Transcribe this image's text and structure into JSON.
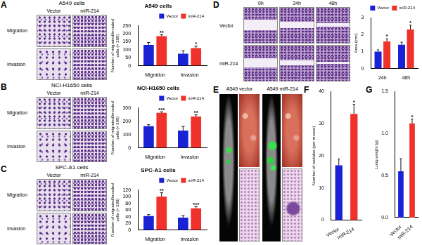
{
  "chart_data": [
    {
      "panel": "A",
      "type": "bar",
      "title": "A549 cells",
      "y_label": "Number of migrated/invaded cells (× 200)",
      "categories": [
        "Migration",
        "Invasion"
      ],
      "series": [
        {
          "name": "Vector",
          "color": "#1a22d6",
          "values": [
            130,
            75
          ],
          "errors": [
            15,
            18
          ]
        },
        {
          "name": "miR-214",
          "color": "#f0322d",
          "values": [
            185,
            110
          ],
          "errors": [
            8,
            12
          ],
          "significance": [
            "**",
            "*"
          ]
        }
      ],
      "ylim": [
        0,
        250
      ],
      "yticks": [
        0,
        50,
        100,
        150,
        200,
        250
      ],
      "grid": false,
      "legend": "top right"
    },
    {
      "panel": "B",
      "type": "bar",
      "title": "NCI-H1650 cells",
      "y_label": "Number of migrated/invaded cells (× 200)",
      "categories": [
        "Migration",
        "Invasion"
      ],
      "series": [
        {
          "name": "Vector",
          "color": "#1a22d6",
          "values": [
            163,
            130
          ],
          "errors": [
            10,
            30
          ]
        },
        {
          "name": "miR-214",
          "color": "#f0322d",
          "values": [
            262,
            235
          ],
          "errors": [
            8,
            12
          ],
          "significance": [
            "***",
            "**"
          ]
        }
      ],
      "ylim": [
        0,
        300
      ],
      "yticks": [
        0,
        100,
        200,
        300
      ],
      "grid": false,
      "legend": "top right"
    },
    {
      "panel": "C",
      "type": "bar",
      "title": "SPC-A1 cells",
      "y_label": "Number of migrated/invaded cells (× 200)",
      "categories": [
        "Migration",
        "Invasion"
      ],
      "series": [
        {
          "name": "Vector",
          "color": "#1a22d6",
          "values": [
            42,
            37
          ],
          "errors": [
            4,
            6
          ]
        },
        {
          "name": "miR-214",
          "color": "#f0322d",
          "values": [
            100,
            65
          ],
          "errors": [
            12,
            5
          ],
          "significance": [
            "**",
            "***"
          ]
        }
      ],
      "ylim": [
        0,
        120
      ],
      "yticks": [
        0,
        20,
        40,
        60,
        80,
        100,
        120
      ],
      "grid": false,
      "legend": "top right"
    },
    {
      "panel": "D",
      "type": "bar",
      "y_label": "Area (cm²)",
      "categories": [
        "24h",
        "48h"
      ],
      "series": [
        {
          "name": "Vector",
          "color": "#1a22d6",
          "values": [
            1.0,
            1.4
          ],
          "errors": [
            0.1,
            0.15
          ]
        },
        {
          "name": "miR-214",
          "color": "#f0322d",
          "values": [
            1.6,
            2.3
          ],
          "errors": [
            0.15,
            0.25
          ],
          "significance": [
            "*",
            "*"
          ]
        }
      ],
      "ylim": [
        0,
        3
      ],
      "yticks": [
        0,
        1,
        2,
        3
      ],
      "grid": false,
      "legend": "top right"
    },
    {
      "panel": "F",
      "type": "bar",
      "y_label": "Number of nodules (per mouse)",
      "categories": [
        "Vector",
        "miR-214"
      ],
      "values": [
        17,
        33
      ],
      "errors": [
        2,
        3
      ],
      "significance": [
        null,
        "*"
      ],
      "colors": [
        "#1a22d6",
        "#f0322d"
      ],
      "ylim": [
        0,
        40
      ],
      "yticks": [
        0,
        10,
        20,
        30,
        40
      ],
      "grid": false
    },
    {
      "panel": "G",
      "type": "bar",
      "y_label": "Lung weight (g)",
      "categories": [
        "Vector",
        "miR-214"
      ],
      "values": [
        0.55,
        1.12
      ],
      "errors": [
        0.15,
        0.05
      ],
      "significance": [
        null,
        "*"
      ],
      "colors": [
        "#1a22d6",
        "#f0322d"
      ],
      "ylim": [
        0,
        1.5
      ],
      "yticks": [
        {
          "value": 0,
          "label": "0.0"
        },
        {
          "value": 0.5,
          "label": "0.5"
        },
        {
          "value": 1,
          "label": "1.0"
        },
        {
          "value": 1.5,
          "label": "1.5"
        }
      ],
      "grid": false
    }
  ],
  "image_panels": [
    {
      "title": "A549 cells",
      "columns": [
        "Vector",
        "miR-214"
      ],
      "rows": [
        "Migration",
        "Invasion"
      ]
    },
    {
      "title": "NCI-H1650 cells",
      "columns": [
        "Vector",
        "miR-214"
      ],
      "rows": [
        "Migration",
        "Invasion"
      ]
    },
    {
      "title": "SPC-A1 cells",
      "columns": [
        "Vector",
        "miR-214"
      ],
      "rows": [
        "Migration",
        "Invasion"
      ]
    },
    {
      "columns": [
        "0h",
        "24h",
        "48h"
      ],
      "rows": [
        "Vector",
        "miR-214"
      ]
    },
    {
      "panel": "E",
      "columns": [
        "A549 vector",
        "A549 miR-214"
      ]
    }
  ]
}
